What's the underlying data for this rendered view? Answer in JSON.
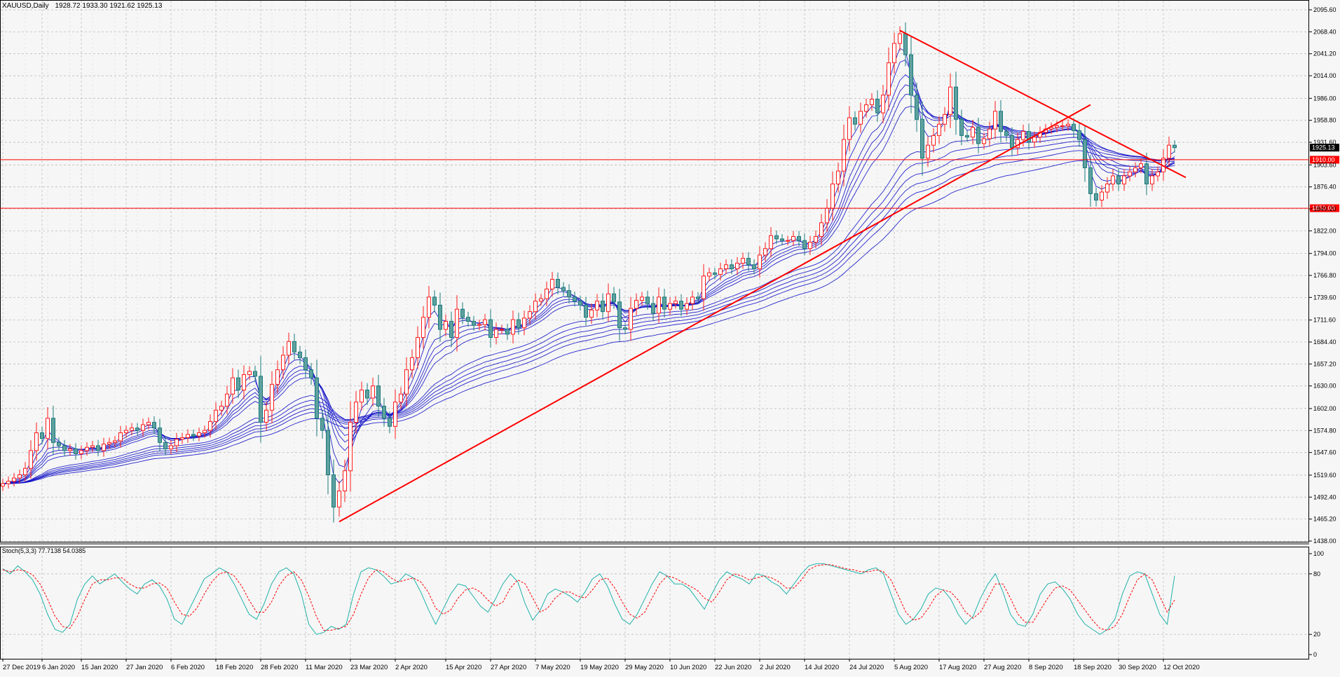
{
  "header": {
    "symbol": "XAUUSD,Daily",
    "ohlc": "1928.72 1933.30 1921.62 1925.13"
  },
  "stoch": {
    "label": "Stoch(5,3,3) 77.7138 54.0385",
    "yticks": [
      100,
      80,
      20,
      0
    ],
    "levels": [
      80,
      20
    ],
    "main": [
      85,
      80,
      88,
      82,
      74,
      60,
      40,
      25,
      22,
      30,
      55,
      70,
      78,
      70,
      75,
      80,
      72,
      65,
      60,
      70,
      74,
      68,
      55,
      35,
      30,
      45,
      60,
      75,
      80,
      86,
      82,
      70,
      55,
      40,
      35,
      50,
      70,
      82,
      86,
      80,
      60,
      30,
      20,
      22,
      28,
      25,
      30,
      60,
      82,
      86,
      84,
      78,
      70,
      72,
      80,
      76,
      62,
      45,
      30,
      45,
      60,
      70,
      68,
      58,
      48,
      42,
      55,
      70,
      80,
      72,
      50,
      34,
      44,
      60,
      65,
      62,
      58,
      52,
      62,
      75,
      80,
      68,
      50,
      35,
      30,
      40,
      55,
      70,
      82,
      78,
      70,
      70,
      65,
      55,
      45,
      60,
      74,
      82,
      78,
      75,
      70,
      80,
      78,
      72,
      68,
      60,
      70,
      80,
      88,
      90,
      90,
      88,
      86,
      84,
      82,
      80,
      84,
      86,
      80,
      60,
      40,
      30,
      35,
      45,
      60,
      66,
      64,
      55,
      40,
      30,
      38,
      56,
      70,
      80,
      62,
      40,
      30,
      28,
      40,
      60,
      70,
      72,
      65,
      55,
      40,
      30,
      25,
      20,
      25,
      35,
      60,
      78,
      82,
      80,
      60,
      40,
      30,
      78
    ],
    "signal": [
      84,
      82,
      84,
      83,
      79,
      70,
      55,
      38,
      28,
      26,
      38,
      55,
      70,
      74,
      74,
      76,
      76,
      70,
      66,
      66,
      70,
      71,
      66,
      52,
      40,
      38,
      46,
      60,
      72,
      80,
      82,
      78,
      68,
      54,
      42,
      42,
      52,
      68,
      78,
      82,
      74,
      58,
      38,
      24,
      24,
      26,
      28,
      40,
      60,
      76,
      84,
      82,
      76,
      72,
      74,
      76,
      72,
      62,
      46,
      40,
      44,
      56,
      64,
      66,
      62,
      54,
      48,
      52,
      66,
      74,
      70,
      56,
      42,
      46,
      56,
      62,
      62,
      58,
      56,
      64,
      74,
      76,
      66,
      52,
      40,
      36,
      42,
      56,
      70,
      78,
      76,
      72,
      68,
      64,
      56,
      52,
      62,
      74,
      80,
      78,
      74,
      76,
      78,
      76,
      72,
      66,
      66,
      74,
      84,
      88,
      89,
      89,
      87,
      85,
      84,
      82,
      82,
      84,
      82,
      74,
      58,
      42,
      34,
      36,
      46,
      58,
      64,
      62,
      54,
      42,
      36,
      42,
      56,
      70,
      70,
      56,
      40,
      32,
      32,
      44,
      56,
      66,
      68,
      64,
      54,
      44,
      34,
      26,
      24,
      28,
      40,
      58,
      74,
      80,
      74,
      58,
      42,
      54
    ]
  },
  "chart_data": {
    "type": "candlestick",
    "symbol": "XAUUSD",
    "timeframe": "Daily",
    "ylim": [
      1438.0,
      2095.6
    ],
    "yticks": [
      2095.6,
      2068.4,
      2041.2,
      2014.0,
      1986.0,
      1958.8,
      1931.6,
      1903.6,
      1876.4,
      1849.2,
      1822.0,
      1794.0,
      1766.8,
      1739.6,
      1711.6,
      1684.4,
      1657.2,
      1630.0,
      1602.0,
      1574.8,
      1547.6,
      1519.6,
      1492.4,
      1465.2,
      1438.0
    ],
    "xtick_labels": [
      "27 Dec 2019",
      "6 Jan 2020",
      "15 Jan 2020",
      "27 Jan 2020",
      "6 Feb 2020",
      "18 Feb 2020",
      "28 Feb 2020",
      "11 Mar 2020",
      "23 Mar 2020",
      "2 Apr 2020",
      "15 Apr 2020",
      "27 Apr 2020",
      "7 May 2020",
      "19 May 2020",
      "29 May 2020",
      "10 Jun 2020",
      "22 Jun 2020",
      "2 Jul 2020",
      "14 Jul 2020",
      "24 Jul 2020",
      "5 Aug 2020",
      "17 Aug 2020",
      "27 Aug 2020",
      "8 Sep 2020",
      "18 Sep 2020",
      "30 Sep 2020",
      "12 Oct 2020"
    ],
    "xtick_index": [
      0,
      7,
      14,
      22,
      30,
      38,
      46,
      54,
      62,
      70,
      79,
      87,
      95,
      103,
      111,
      119,
      127,
      135,
      143,
      151,
      159,
      167,
      175,
      183,
      191,
      199,
      207
    ],
    "bars": 209,
    "closes": [
      1509,
      1512,
      1516,
      1520,
      1528,
      1550,
      1572,
      1565,
      1590,
      1560,
      1556,
      1550,
      1552,
      1546,
      1550,
      1554,
      1556,
      1550,
      1558,
      1560,
      1562,
      1572,
      1575,
      1578,
      1575,
      1582,
      1585,
      1578,
      1560,
      1552,
      1556,
      1564,
      1566,
      1570,
      1568,
      1572,
      1575,
      1586,
      1600,
      1605,
      1620,
      1640,
      1625,
      1644,
      1648,
      1642,
      1585,
      1600,
      1632,
      1650,
      1668,
      1685,
      1672,
      1665,
      1650,
      1640,
      1590,
      1575,
      1520,
      1480,
      1500,
      1525,
      1585,
      1610,
      1625,
      1615,
      1630,
      1605,
      1590,
      1580,
      1610,
      1620,
      1650,
      1665,
      1690,
      1715,
      1740,
      1730,
      1700,
      1710,
      1690,
      1725,
      1715,
      1710,
      1705,
      1706,
      1712,
      1690,
      1700,
      1700,
      1694,
      1712,
      1702,
      1714,
      1722,
      1735,
      1738,
      1750,
      1762,
      1752,
      1748,
      1740,
      1735,
      1730,
      1715,
      1724,
      1735,
      1722,
      1744,
      1734,
      1702,
      1700,
      1726,
      1736,
      1740,
      1732,
      1720,
      1740,
      1725,
      1732,
      1735,
      1725,
      1732,
      1740,
      1738,
      1766,
      1770,
      1768,
      1775,
      1780,
      1775,
      1782,
      1788,
      1780,
      1775,
      1792,
      1800,
      1816,
      1812,
      1810,
      1810,
      1815,
      1810,
      1800,
      1808,
      1815,
      1832,
      1850,
      1880,
      1896,
      1935,
      1962,
      1954,
      1970,
      1978,
      1985,
      1968,
      1990,
      2030,
      2054,
      2066,
      2040,
      1990,
      1960,
      1912,
      1928,
      1940,
      1954,
      1966,
      2000,
      1960,
      1940,
      1938,
      1950,
      1930,
      1936,
      1948,
      1970,
      1945,
      1940,
      1925,
      1935,
      1945,
      1932,
      1938,
      1944,
      1948,
      1950,
      1952,
      1952,
      1954,
      1946,
      1935,
      1900,
      1868,
      1860,
      1870,
      1880,
      1890,
      1880,
      1890,
      1895,
      1900,
      1905,
      1880,
      1890,
      1895,
      1912,
      1928,
      1925
    ],
    "horizontal_levels": [
      {
        "label": "1910.00",
        "value": 1910.0
      },
      {
        "label": "1850.00",
        "value": 1850.0
      }
    ],
    "current_price_label": "1925.13",
    "trendlines": [
      {
        "from": [
          60,
          1462
        ],
        "to": [
          194,
          1978
        ]
      },
      {
        "from": [
          160,
          2070
        ],
        "to": [
          211,
          1888
        ]
      }
    ],
    "ma_periods": [
      3,
      5,
      8,
      10,
      12,
      15,
      30,
      35,
      40,
      45,
      50,
      60
    ]
  }
}
